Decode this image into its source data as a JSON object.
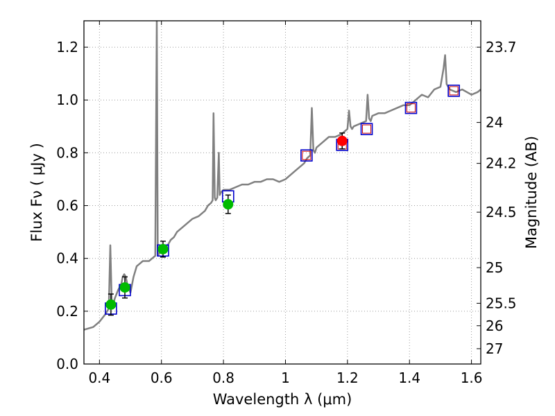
{
  "chart_data": {
    "type": "line",
    "title": "",
    "xlabel": "Wavelength  λ (μm)",
    "ylabel": "Flux  Fν  ( μJy )",
    "ylabel_right": "Magnitude (AB)",
    "xlim": [
      0.35,
      1.63
    ],
    "ylim": [
      0.0,
      1.3
    ],
    "grid": true,
    "x_ticks": [
      0.4,
      0.6,
      0.8,
      1.0,
      1.2,
      1.4,
      1.6
    ],
    "x_tick_labels": [
      "0.4",
      "0.6",
      "0.8",
      "1",
      "1.2",
      "1.4",
      "1.6"
    ],
    "y_ticks": [
      0.0,
      0.2,
      0.4,
      0.6,
      0.8,
      1.0,
      1.2
    ],
    "y_tick_labels": [
      "0.0",
      "0.2",
      "0.4",
      "0.6",
      "0.8",
      "1.0",
      "1.2"
    ],
    "right_ticks": [
      {
        "flux": 1.2,
        "label": "23.7"
      },
      {
        "flux": 0.915,
        "label": "24"
      },
      {
        "flux": 0.76,
        "label": "24.2"
      },
      {
        "flux": 0.575,
        "label": "24.5"
      },
      {
        "flux": 0.365,
        "label": "25"
      },
      {
        "flux": 0.23,
        "label": "25.5"
      },
      {
        "flux": 0.145,
        "label": "26"
      },
      {
        "flux": 0.058,
        "label": "27"
      }
    ],
    "colors": {
      "model": "#808080",
      "box": "#0000cc",
      "nir_box": "#cc0000",
      "optical_point": "#00bb00",
      "nir_point": "#ff0000",
      "errorbar": "#000000",
      "grid": "#999999"
    },
    "model_spectrum": {
      "x": [
        0.35,
        0.38,
        0.4,
        0.42,
        0.425,
        0.43,
        0.435,
        0.44,
        0.445,
        0.45,
        0.46,
        0.47,
        0.475,
        0.48,
        0.485,
        0.49,
        0.5,
        0.51,
        0.52,
        0.53,
        0.54,
        0.55,
        0.56,
        0.57,
        0.58,
        0.585,
        0.588,
        0.59,
        0.592,
        0.595,
        0.6,
        0.61,
        0.62,
        0.63,
        0.64,
        0.65,
        0.66,
        0.68,
        0.7,
        0.72,
        0.74,
        0.75,
        0.76,
        0.765,
        0.768,
        0.772,
        0.775,
        0.78,
        0.785,
        0.788,
        0.792,
        0.8,
        0.82,
        0.84,
        0.86,
        0.88,
        0.9,
        0.92,
        0.94,
        0.96,
        0.98,
        1.0,
        1.02,
        1.04,
        1.06,
        1.07,
        1.08,
        1.085,
        1.09,
        1.095,
        1.1,
        1.12,
        1.14,
        1.16,
        1.18,
        1.2,
        1.205,
        1.21,
        1.215,
        1.22,
        1.24,
        1.26,
        1.265,
        1.27,
        1.275,
        1.28,
        1.3,
        1.32,
        1.34,
        1.36,
        1.38,
        1.4,
        1.42,
        1.44,
        1.46,
        1.48,
        1.5,
        1.51,
        1.515,
        1.52,
        1.53,
        1.55,
        1.57,
        1.6,
        1.62,
        1.63
      ],
      "flux": [
        0.13,
        0.14,
        0.16,
        0.19,
        0.2,
        0.21,
        0.45,
        0.22,
        0.23,
        0.25,
        0.28,
        0.3,
        0.33,
        0.34,
        0.33,
        0.3,
        0.27,
        0.33,
        0.37,
        0.38,
        0.39,
        0.39,
        0.39,
        0.4,
        0.41,
        1.3,
        0.42,
        0.41,
        0.42,
        0.42,
        0.43,
        0.44,
        0.45,
        0.47,
        0.48,
        0.5,
        0.51,
        0.53,
        0.55,
        0.56,
        0.58,
        0.6,
        0.61,
        0.62,
        0.95,
        0.63,
        0.62,
        0.63,
        0.8,
        0.64,
        0.65,
        0.66,
        0.66,
        0.67,
        0.68,
        0.68,
        0.69,
        0.69,
        0.7,
        0.7,
        0.69,
        0.7,
        0.72,
        0.74,
        0.76,
        0.78,
        0.79,
        0.97,
        0.81,
        0.8,
        0.82,
        0.84,
        0.86,
        0.86,
        0.87,
        0.89,
        0.96,
        0.9,
        0.89,
        0.9,
        0.91,
        0.92,
        1.02,
        0.93,
        0.92,
        0.94,
        0.95,
        0.95,
        0.96,
        0.97,
        0.98,
        0.98,
        1.0,
        1.02,
        1.01,
        1.04,
        1.05,
        1.12,
        1.17,
        1.06,
        1.04,
        1.03,
        1.04,
        1.02,
        1.03,
        1.04
      ]
    },
    "synthetic_boxes": [
      {
        "x": 0.437,
        "flux": 0.21
      },
      {
        "x": 0.482,
        "flux": 0.28
      },
      {
        "x": 0.605,
        "flux": 0.43
      },
      {
        "x": 0.815,
        "flux": 0.635
      },
      {
        "x": 1.068,
        "flux": 0.79
      },
      {
        "x": 1.183,
        "flux": 0.83
      },
      {
        "x": 1.262,
        "flux": 0.89
      },
      {
        "x": 1.405,
        "flux": 0.97
      },
      {
        "x": 1.543,
        "flux": 1.035
      }
    ],
    "observed_points": [
      {
        "x": 0.437,
        "flux": 0.225,
        "err": 0.04,
        "band": "optical"
      },
      {
        "x": 0.482,
        "flux": 0.29,
        "err": 0.04,
        "band": "optical"
      },
      {
        "x": 0.605,
        "flux": 0.435,
        "err": 0.03,
        "band": "optical"
      },
      {
        "x": 0.815,
        "flux": 0.605,
        "err": 0.035,
        "band": "optical"
      },
      {
        "x": 1.183,
        "flux": 0.845,
        "err": 0.03,
        "band": "nir"
      }
    ]
  }
}
